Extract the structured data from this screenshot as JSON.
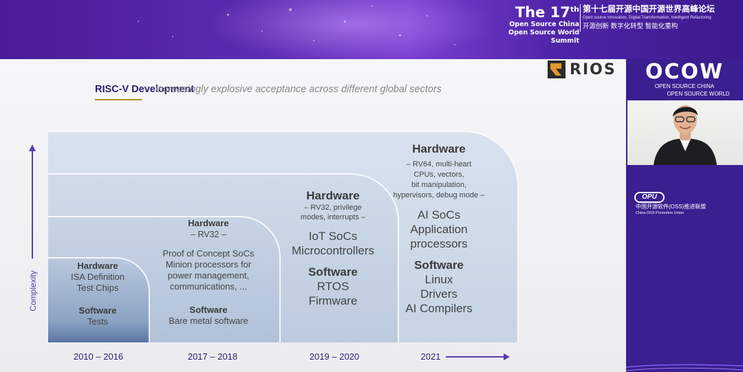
{
  "event": {
    "title_17": "The 17",
    "title_th": "th",
    "line1": "Open Source China",
    "line2": "Open Source World Summit",
    "cn_title": "第十七届开源中国开源世界高峰论坛",
    "en_tagline": "Open source Innovation,   Digital Transformation,   Intelligent Refactoring",
    "cn_tagline": "开源创新  数字化转型  智能化重构"
  },
  "sidebar": {
    "logo": "OCOW",
    "logo_sub1": "OPEN SOURCE CHINA",
    "logo_sub2": "OPEN SOURCE WORLD",
    "opu_logo": "OPU",
    "opu_cn": "中国开源软件(OSS)推进联盟",
    "opu_en": "China OSS Promotion Union"
  },
  "slide": {
    "brand": "RIOS",
    "title": "RISC-V Development",
    "subtitle": "increasingly explosive acceptance across different global sectors",
    "y_label": "Complexity",
    "eras": [
      {
        "label": "2010 – 2016",
        "hw_title": "Hardware",
        "hw_lines": [
          "ISA Definition",
          "Test Chips"
        ],
        "sw_title": "Software",
        "sw_lines": [
          "Tests"
        ]
      },
      {
        "label": "2017 – 2018",
        "hw_title": "Hardware",
        "hw_detail": "– RV32 –",
        "hw_lines": [
          "Proof of Concept SoCs",
          "Minion processors for",
          "power management,",
          "communications, ..."
        ],
        "sw_title": "Software",
        "sw_lines": [
          "Bare metal software"
        ]
      },
      {
        "label": "2019 – 2020",
        "hw_title": "Hardware",
        "hw_detail": [
          "– RV32, privilege",
          "modes, interrupts –"
        ],
        "hw_lines": [
          "IoT SoCs",
          "Microcontrollers"
        ],
        "sw_title": "Software",
        "sw_lines": [
          "RTOS",
          "Firmware"
        ]
      },
      {
        "label": "2021",
        "hw_title": "Hardware",
        "hw_detail": [
          "– RV64, multi-heart",
          "CPUs, vectors,",
          "bit manipulation,",
          "hypervisors, debug mode –"
        ],
        "hw_lines": [
          "AI SoCs",
          "Application",
          "processors"
        ],
        "sw_title": "Software",
        "sw_lines": [
          "Linux",
          "Drivers",
          "AI Compilers"
        ]
      }
    ]
  },
  "colors": {
    "banner": "#4a1c9a",
    "panel": "#3b1e8f",
    "accent": "#5a3bb0",
    "title": "#2a1f6e",
    "underline": "#b08a32"
  }
}
